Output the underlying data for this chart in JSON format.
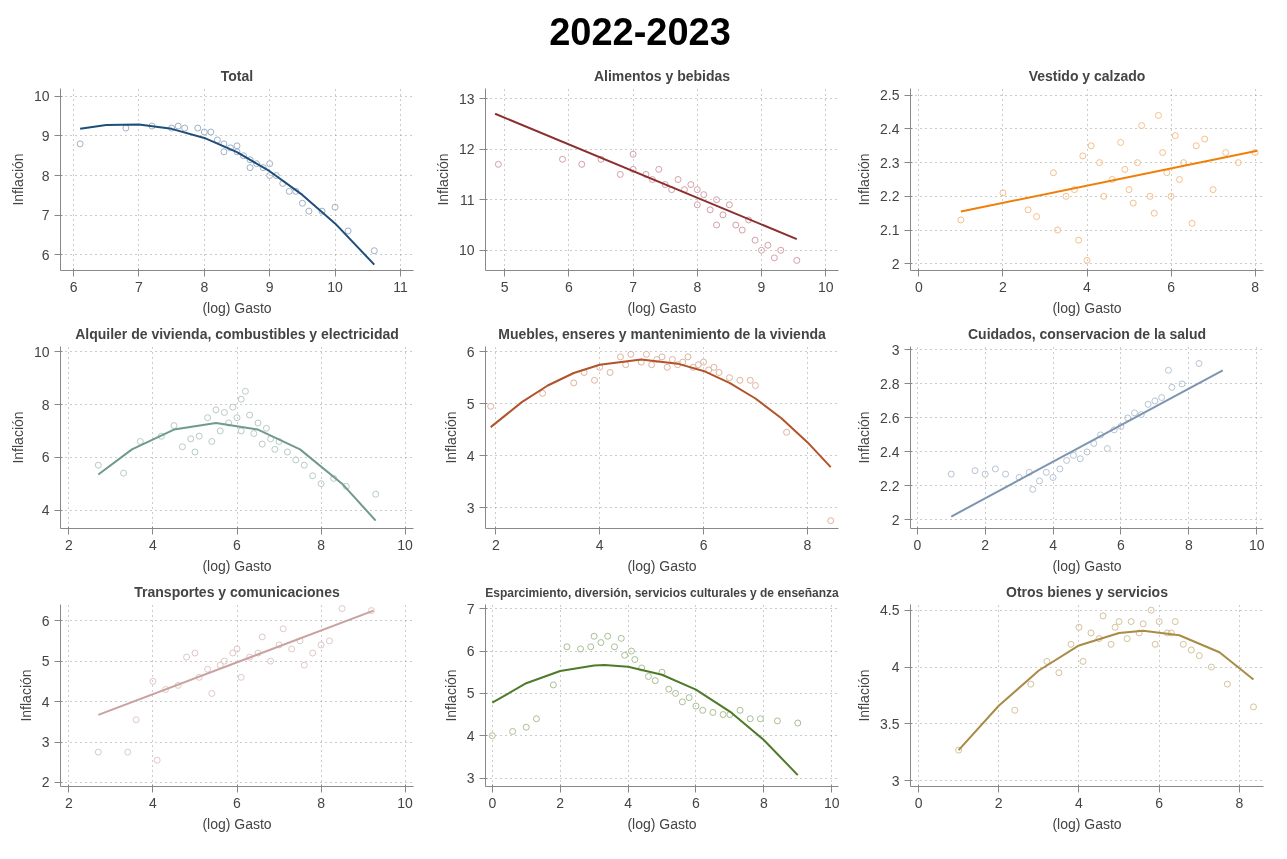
{
  "chart_data": [
    {
      "type": "other",
      "title": "2022-2023"
    },
    {
      "type": "scatter",
      "title": "Total",
      "xlabel": "(log) Gasto",
      "ylabel": "Inflación",
      "xlim": [
        5.8,
        11.2
      ],
      "ylim": [
        5.6,
        10.2
      ],
      "xticks": [
        6,
        7,
        8,
        9,
        10,
        11
      ],
      "yticks": [
        6,
        7,
        8,
        9,
        10
      ],
      "grid": true,
      "series": [
        {
          "type": "scatter",
          "marker": "circle",
          "color": "#9fb3c8",
          "x": [
            6.1,
            6.8,
            7.2,
            7.5,
            7.6,
            7.7,
            7.9,
            8.0,
            8.1,
            8.2,
            8.3,
            8.3,
            8.4,
            8.5,
            8.5,
            8.6,
            8.7,
            8.7,
            8.8,
            8.9,
            9.0,
            9.0,
            9.1,
            9.2,
            9.3,
            9.4,
            9.5,
            9.6,
            9.8,
            10.0,
            10.2,
            10.6
          ],
          "values": [
            8.8,
            9.2,
            9.25,
            9.2,
            9.25,
            9.2,
            9.2,
            9.1,
            9.1,
            8.9,
            8.8,
            8.6,
            8.7,
            8.6,
            8.75,
            8.5,
            8.4,
            8.2,
            8.3,
            8.2,
            8.3,
            8.0,
            8.0,
            7.8,
            7.6,
            7.6,
            7.3,
            7.1,
            7.1,
            7.2,
            6.6,
            6.1
          ]
        },
        {
          "type": "line",
          "color": "#1f4e79",
          "x": [
            6.1,
            6.5,
            7,
            7.5,
            8,
            8.5,
            9,
            9.5,
            10,
            10.6
          ],
          "values": [
            9.18,
            9.28,
            9.29,
            9.18,
            8.95,
            8.59,
            8.11,
            7.51,
            6.79,
            5.75
          ]
        }
      ]
    },
    {
      "type": "scatter",
      "title": "Alimentos y bebidas",
      "xlabel": "(log) Gasto",
      "ylabel": "Inflación",
      "xlim": [
        4.7,
        10.2
      ],
      "ylim": [
        9.6,
        13.2
      ],
      "xticks": [
        5,
        6,
        7,
        8,
        9,
        10
      ],
      "yticks": [
        10,
        11,
        12,
        13
      ],
      "grid": true,
      "series": [
        {
          "type": "scatter",
          "marker": "circle",
          "color": "#d4a0a8",
          "x": [
            4.9,
            5.9,
            6.2,
            6.5,
            6.8,
            7.0,
            7.0,
            7.2,
            7.3,
            7.4,
            7.5,
            7.6,
            7.7,
            7.8,
            7.9,
            8.0,
            8.0,
            8.1,
            8.2,
            8.3,
            8.3,
            8.4,
            8.5,
            8.6,
            8.7,
            8.8,
            8.9,
            9.0,
            9.1,
            9.2,
            9.3,
            9.55
          ],
          "values": [
            11.7,
            11.8,
            11.7,
            11.8,
            11.5,
            11.9,
            11.6,
            11.5,
            11.4,
            11.6,
            11.3,
            11.2,
            11.4,
            11.2,
            11.3,
            11.2,
            10.9,
            11.1,
            10.8,
            11.0,
            10.5,
            10.7,
            10.9,
            10.5,
            10.4,
            10.6,
            10.2,
            10.0,
            10.1,
            9.85,
            10.0,
            9.8
          ]
        },
        {
          "type": "line",
          "color": "#8b2e2e",
          "x": [
            4.85,
            9.55
          ],
          "values": [
            12.7,
            10.22
          ]
        }
      ]
    },
    {
      "type": "scatter",
      "title": "Vestido y calzado",
      "xlabel": "(log) Gasto",
      "ylabel": "Inflación",
      "xlim": [
        -0.2,
        8.2
      ],
      "ylim": [
        1.98,
        2.52
      ],
      "xticks": [
        0,
        2,
        4,
        6,
        8
      ],
      "yticks": [
        2,
        2.1,
        2.2,
        2.3,
        2.4,
        2.5
      ],
      "grid": true,
      "series": [
        {
          "type": "scatter",
          "marker": "circle",
          "color": "#f5c08a",
          "x": [
            1.0,
            2.0,
            2.6,
            2.8,
            3.2,
            3.3,
            3.5,
            3.7,
            3.8,
            3.9,
            4.0,
            4.1,
            4.3,
            4.4,
            4.6,
            4.8,
            4.9,
            5.0,
            5.1,
            5.2,
            5.3,
            5.5,
            5.6,
            5.7,
            5.8,
            5.9,
            6.0,
            6.1,
            6.2,
            6.3,
            6.5,
            6.6,
            6.8,
            7.0,
            7.3,
            7.6,
            8.0
          ],
          "values": [
            2.13,
            2.21,
            2.16,
            2.14,
            2.27,
            2.1,
            2.2,
            2.22,
            2.07,
            2.32,
            2.01,
            2.35,
            2.3,
            2.2,
            2.25,
            2.36,
            2.28,
            2.22,
            2.18,
            2.3,
            2.41,
            2.2,
            2.15,
            2.44,
            2.33,
            2.27,
            2.2,
            2.38,
            2.25,
            2.3,
            2.12,
            2.35,
            2.37,
            2.22,
            2.33,
            2.3,
            2.33
          ]
        },
        {
          "type": "line",
          "color": "#f07f09",
          "x": [
            1.0,
            8.05
          ],
          "values": [
            2.155,
            2.335
          ]
        }
      ]
    },
    {
      "type": "scatter",
      "title": "Alquiler de vivienda, combustibles y electricidad",
      "xlabel": "(log) Gasto",
      "ylabel": "Inflación",
      "xlim": [
        1.8,
        10.2
      ],
      "ylim": [
        3.3,
        10.2
      ],
      "xticks": [
        2,
        4,
        6,
        8,
        10
      ],
      "yticks": [
        4,
        6,
        8,
        10
      ],
      "grid": true,
      "series": [
        {
          "type": "scatter",
          "marker": "circle",
          "color": "#b8cbc5",
          "x": [
            2.7,
            3.3,
            3.7,
            4.2,
            4.5,
            4.7,
            4.9,
            5.0,
            5.1,
            5.3,
            5.4,
            5.5,
            5.6,
            5.7,
            5.8,
            5.9,
            6.0,
            6.1,
            6.1,
            6.2,
            6.3,
            6.4,
            6.5,
            6.6,
            6.7,
            6.8,
            6.9,
            7.0,
            7.2,
            7.4,
            7.6,
            7.8,
            8.0,
            8.3,
            8.6,
            9.3
          ],
          "values": [
            5.7,
            5.4,
            6.6,
            6.8,
            7.2,
            6.4,
            6.7,
            6.2,
            6.8,
            7.5,
            6.6,
            7.8,
            7.0,
            7.7,
            7.3,
            7.9,
            7.5,
            8.2,
            7.0,
            8.5,
            7.6,
            6.9,
            7.3,
            6.5,
            7.1,
            6.7,
            6.3,
            6.6,
            6.2,
            5.9,
            5.7,
            5.3,
            5.0,
            5.2,
            4.9,
            4.6
          ]
        },
        {
          "type": "line",
          "color": "#6f9a8d",
          "x": [
            2.7,
            3.5,
            4.5,
            5.5,
            6.5,
            7.5,
            8.5,
            9.3
          ],
          "values": [
            5.35,
            6.3,
            7.05,
            7.3,
            7.05,
            6.3,
            5.0,
            3.6
          ]
        }
      ]
    },
    {
      "type": "scatter",
      "title": "Muebles, enseres y mantenimiento de la vivienda",
      "xlabel": "(log) Gasto",
      "ylabel": "Inflación",
      "xlim": [
        1.8,
        8.6
      ],
      "ylim": [
        2.6,
        6.1
      ],
      "xticks": [
        2,
        4,
        6,
        8
      ],
      "yticks": [
        3,
        4,
        5,
        6
      ],
      "grid": true,
      "series": [
        {
          "type": "scatter",
          "marker": "circle",
          "color": "#dfb3a0",
          "x": [
            1.9,
            2.9,
            3.5,
            3.7,
            3.9,
            4.0,
            4.2,
            4.4,
            4.5,
            4.6,
            4.8,
            4.9,
            5.0,
            5.1,
            5.2,
            5.3,
            5.4,
            5.5,
            5.6,
            5.7,
            5.8,
            5.9,
            6.0,
            6.1,
            6.2,
            6.3,
            6.5,
            6.7,
            6.9,
            7.0,
            7.6,
            8.45
          ],
          "values": [
            4.95,
            5.2,
            5.4,
            5.6,
            5.45,
            5.7,
            5.6,
            5.9,
            5.75,
            5.95,
            5.8,
            5.95,
            5.75,
            5.85,
            5.9,
            5.7,
            5.85,
            5.75,
            5.8,
            5.9,
            5.7,
            5.75,
            5.8,
            5.65,
            5.7,
            5.6,
            5.5,
            5.45,
            5.45,
            5.35,
            4.45,
            2.75
          ]
        },
        {
          "type": "line",
          "color": "#b2532b",
          "x": [
            1.9,
            2.5,
            3.0,
            3.5,
            4.0,
            4.8,
            5.5,
            6.0,
            6.5,
            7.0,
            7.5,
            8.0,
            8.45
          ],
          "values": [
            4.55,
            5.03,
            5.35,
            5.59,
            5.75,
            5.85,
            5.77,
            5.63,
            5.4,
            5.1,
            4.72,
            4.26,
            3.78
          ]
        }
      ]
    },
    {
      "type": "scatter",
      "title": "Cuidados, conservacion de la salud",
      "xlabel": "(log) Gasto",
      "ylabel": "Inflación",
      "xlim": [
        -0.2,
        10.2
      ],
      "ylim": [
        1.95,
        3.02
      ],
      "xticks": [
        0,
        2,
        4,
        6,
        8,
        10
      ],
      "yticks": [
        2,
        2.2,
        2.4,
        2.6,
        2.8,
        3
      ],
      "grid": true,
      "series": [
        {
          "type": "scatter",
          "marker": "circle",
          "color": "#b7c4d3",
          "x": [
            1.0,
            1.7,
            2.0,
            2.3,
            2.6,
            3.0,
            3.3,
            3.4,
            3.6,
            3.8,
            4.0,
            4.2,
            4.4,
            4.6,
            4.8,
            5.0,
            5.2,
            5.4,
            5.6,
            5.8,
            6.0,
            6.2,
            6.4,
            6.6,
            6.8,
            7.0,
            7.2,
            7.4,
            7.5,
            7.8,
            8.3
          ],
          "values": [
            2.27,
            2.29,
            2.27,
            2.3,
            2.27,
            2.25,
            2.28,
            2.18,
            2.23,
            2.28,
            2.25,
            2.3,
            2.35,
            2.38,
            2.36,
            2.4,
            2.45,
            2.5,
            2.42,
            2.53,
            2.55,
            2.6,
            2.63,
            2.62,
            2.68,
            2.7,
            2.72,
            2.88,
            2.78,
            2.8,
            2.92
          ]
        },
        {
          "type": "line",
          "color": "#7d95b0",
          "x": [
            1.0,
            9.0
          ],
          "values": [
            2.02,
            2.88
          ]
        }
      ]
    },
    {
      "type": "scatter",
      "title": "Transportes y comunicaciones",
      "xlabel": "(log) Gasto",
      "ylabel": "Inflación",
      "xlim": [
        1.8,
        10.2
      ],
      "ylim": [
        1.9,
        6.4
      ],
      "xticks": [
        2,
        4,
        6,
        8,
        10
      ],
      "yticks": [
        2,
        3,
        4,
        5,
        6
      ],
      "grid": true,
      "series": [
        {
          "type": "scatter",
          "marker": "circle",
          "color": "#e0c8c7",
          "x": [
            2.7,
            3.4,
            3.6,
            4.0,
            4.1,
            4.3,
            4.6,
            4.8,
            5.0,
            5.1,
            5.3,
            5.4,
            5.6,
            5.7,
            5.9,
            6.0,
            6.1,
            6.3,
            6.5,
            6.6,
            6.8,
            7.0,
            7.1,
            7.3,
            7.5,
            7.6,
            7.8,
            8.0,
            8.2,
            8.5,
            9.2
          ],
          "values": [
            2.75,
            2.75,
            3.55,
            4.5,
            2.55,
            4.3,
            4.4,
            5.1,
            5.2,
            4.6,
            4.8,
            4.2,
            4.9,
            5.0,
            5.2,
            5.3,
            4.6,
            5.1,
            5.2,
            5.6,
            5.0,
            5.4,
            5.8,
            5.3,
            5.5,
            4.9,
            5.2,
            5.4,
            5.5,
            6.3,
            6.25
          ]
        },
        {
          "type": "line",
          "color": "#c9a2a0",
          "x": [
            2.7,
            9.25
          ],
          "values": [
            3.67,
            6.25
          ]
        }
      ]
    },
    {
      "type": "scatter",
      "title": "Esparcimiento, diversión, servicios culturales y de enseñanza",
      "xlabel": "(log) Gasto",
      "ylabel": "Inflación",
      "xlim": [
        -0.2,
        10.2
      ],
      "ylim": [
        2.8,
        7.1
      ],
      "xticks": [
        0,
        2,
        4,
        6,
        8,
        10
      ],
      "yticks": [
        3,
        4,
        5,
        6,
        7
      ],
      "grid": true,
      "series": [
        {
          "type": "scatter",
          "marker": "circle",
          "color": "#a9bf93",
          "x": [
            0.0,
            0.6,
            1.0,
            1.3,
            1.8,
            2.2,
            2.6,
            2.9,
            3.0,
            3.2,
            3.4,
            3.6,
            3.8,
            3.9,
            4.1,
            4.2,
            4.4,
            4.6,
            4.8,
            5.0,
            5.2,
            5.4,
            5.6,
            5.8,
            6.0,
            6.2,
            6.5,
            6.8,
            7.0,
            7.3,
            7.6,
            7.9,
            8.4,
            9.0
          ],
          "values": [
            4.0,
            4.1,
            4.2,
            4.4,
            5.2,
            6.1,
            6.05,
            6.1,
            6.35,
            6.2,
            6.35,
            6.1,
            6.3,
            5.9,
            6.0,
            5.8,
            5.6,
            5.4,
            5.3,
            5.5,
            5.1,
            5.0,
            4.8,
            4.9,
            4.7,
            4.6,
            4.55,
            4.5,
            4.5,
            4.6,
            4.4,
            4.4,
            4.35,
            4.3
          ]
        },
        {
          "type": "line",
          "color": "#4f7a28",
          "x": [
            0,
            1,
            2,
            3,
            3.3,
            4,
            5,
            6,
            7,
            8,
            9
          ],
          "values": [
            4.78,
            5.24,
            5.53,
            5.66,
            5.67,
            5.63,
            5.44,
            5.09,
            4.57,
            3.9,
            3.07
          ]
        }
      ]
    },
    {
      "type": "scatter",
      "title": "Otros bienes y servicios",
      "xlabel": "(log) Gasto",
      "ylabel": "Inflación",
      "xlim": [
        -0.2,
        8.6
      ],
      "ylim": [
        2.95,
        4.55
      ],
      "xticks": [
        0,
        2,
        4,
        6,
        8
      ],
      "yticks": [
        3,
        3.5,
        4,
        4.5
      ],
      "grid": true,
      "series": [
        {
          "type": "scatter",
          "marker": "circle",
          "color": "#d4c39b",
          "x": [
            1.0,
            2.4,
            2.8,
            3.2,
            3.5,
            3.8,
            4.0,
            4.1,
            4.3,
            4.5,
            4.6,
            4.8,
            4.9,
            5.0,
            5.2,
            5.3,
            5.5,
            5.6,
            5.8,
            5.9,
            6.0,
            6.2,
            6.3,
            6.4,
            6.6,
            6.8,
            7.0,
            7.3,
            7.7,
            8.35
          ],
          "values": [
            3.27,
            3.62,
            3.85,
            4.05,
            3.95,
            4.2,
            4.35,
            4.05,
            4.3,
            4.25,
            4.45,
            4.2,
            4.35,
            4.4,
            4.25,
            4.4,
            4.3,
            4.38,
            4.5,
            4.2,
            4.4,
            4.3,
            4.3,
            4.4,
            4.2,
            4.15,
            4.1,
            4.0,
            3.85,
            3.65
          ]
        },
        {
          "type": "line",
          "color": "#a88b45",
          "x": [
            1,
            2,
            3,
            4,
            5,
            5.6,
            6.5,
            7.5,
            8.35
          ],
          "values": [
            3.27,
            3.66,
            3.97,
            4.19,
            4.3,
            4.32,
            4.28,
            4.13,
            3.89
          ]
        }
      ]
    }
  ]
}
